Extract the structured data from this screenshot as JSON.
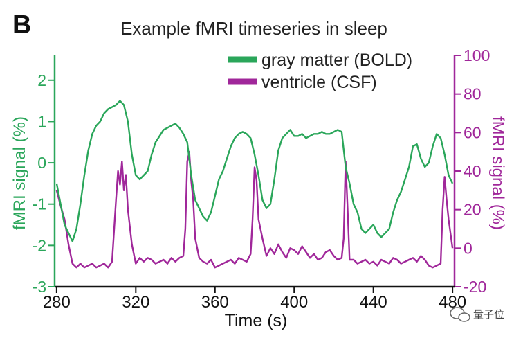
{
  "panel_letter": "B",
  "watermark": "量子位",
  "chart_data": {
    "type": "line",
    "title": "Example fMRI timeseries in sleep",
    "xlabel": "Time (s)",
    "ylabel_left": "fMRI signal (%)",
    "ylabel_right": "fMRI signal (%)",
    "xlim": [
      279,
      481
    ],
    "ylim_left": [
      -3,
      2.6
    ],
    "ylim_right": [
      -20,
      100
    ],
    "x_ticks": [
      280,
      320,
      360,
      400,
      440,
      480
    ],
    "y_ticks_left": [
      -3,
      -2,
      -1,
      0,
      1,
      2
    ],
    "y_ticks_right": [
      -20,
      0,
      20,
      40,
      60,
      80,
      100
    ],
    "grid": false,
    "legend_position": "top-right",
    "colors": {
      "bold": "#2aa65a",
      "csf": "#a0279a"
    },
    "series": [
      {
        "name": "gray matter (BOLD)",
        "axis": "left",
        "color": "#2aa65a",
        "x": [
          280,
          282,
          284,
          286,
          288,
          290,
          292,
          294,
          296,
          298,
          300,
          302,
          304,
          306,
          308,
          310,
          312,
          313,
          314,
          316,
          318,
          320,
          322,
          324,
          326,
          328,
          330,
          332,
          334,
          336,
          338,
          340,
          342,
          344,
          346,
          348,
          350,
          352,
          354,
          356,
          358,
          360,
          362,
          364,
          366,
          368,
          370,
          372,
          374,
          376,
          378,
          380,
          382,
          384,
          386,
          388,
          390,
          392,
          394,
          396,
          398,
          400,
          402,
          404,
          406,
          408,
          410,
          412,
          414,
          416,
          418,
          420,
          422,
          424,
          426,
          428,
          430,
          432,
          434,
          436,
          438,
          440,
          442,
          444,
          446,
          448,
          450,
          452,
          454,
          456,
          458,
          460,
          462,
          464,
          466,
          468,
          470,
          472,
          474,
          476,
          478,
          480
        ],
        "y": [
          -0.5,
          -1.0,
          -1.5,
          -1.7,
          -1.9,
          -1.6,
          -1.0,
          -0.3,
          0.3,
          0.7,
          0.9,
          1.0,
          1.2,
          1.3,
          1.35,
          1.4,
          1.5,
          1.45,
          1.4,
          1.0,
          0.2,
          -0.3,
          -0.4,
          -0.3,
          -0.2,
          0.2,
          0.5,
          0.65,
          0.8,
          0.85,
          0.9,
          0.95,
          0.85,
          0.7,
          0.5,
          -0.3,
          -0.9,
          -1.1,
          -1.3,
          -1.4,
          -1.2,
          -0.8,
          -0.4,
          -0.2,
          0.1,
          0.4,
          0.6,
          0.7,
          0.75,
          0.7,
          0.6,
          0.2,
          -0.3,
          -0.9,
          -1.1,
          -1.0,
          -0.4,
          0.3,
          0.6,
          0.7,
          0.8,
          0.65,
          0.65,
          0.7,
          0.6,
          0.65,
          0.7,
          0.7,
          0.75,
          0.7,
          0.7,
          0.75,
          0.8,
          0.75,
          -0.1,
          -0.5,
          -1.0,
          -1.2,
          -1.6,
          -1.7,
          -1.6,
          -1.5,
          -1.7,
          -1.8,
          -1.7,
          -1.6,
          -1.2,
          -0.9,
          -0.7,
          -0.4,
          -0.1,
          0.4,
          0.45,
          0.1,
          -0.1,
          0.0,
          0.4,
          0.7,
          0.6,
          0.2,
          -0.3,
          -0.5
        ]
      },
      {
        "name": "ventricle (CSF)",
        "axis": "right",
        "color": "#a0279a",
        "x": [
          280,
          282,
          284,
          286,
          288,
          290,
          292,
          294,
          296,
          298,
          300,
          302,
          304,
          306,
          308,
          310,
          311,
          312,
          313,
          314,
          315,
          316,
          318,
          320,
          322,
          324,
          326,
          328,
          330,
          332,
          334,
          336,
          338,
          340,
          342,
          344,
          345,
          346,
          347,
          348,
          349,
          350,
          352,
          354,
          356,
          358,
          360,
          362,
          364,
          366,
          368,
          370,
          372,
          374,
          376,
          378,
          379,
          380,
          381,
          382,
          384,
          386,
          388,
          390,
          392,
          394,
          396,
          398,
          400,
          402,
          404,
          406,
          408,
          410,
          412,
          414,
          416,
          418,
          420,
          422,
          424,
          425,
          426,
          427,
          428,
          430,
          432,
          434,
          436,
          438,
          440,
          442,
          444,
          446,
          448,
          450,
          452,
          454,
          456,
          458,
          460,
          462,
          464,
          466,
          468,
          470,
          472,
          474,
          475,
          476,
          477,
          478,
          480
        ],
        "y": [
          30,
          22,
          15,
          2,
          -8,
          -10,
          -8,
          -10,
          -9,
          -8,
          -10,
          -9,
          -8,
          -10,
          -7,
          25,
          40,
          33,
          45,
          30,
          38,
          20,
          2,
          -8,
          -5,
          -7,
          -5,
          -6,
          -8,
          -7,
          -6,
          -8,
          -5,
          -7,
          -5,
          -4,
          10,
          45,
          50,
          35,
          25,
          5,
          -5,
          -7,
          -8,
          -6,
          -10,
          -9,
          -8,
          -7,
          -6,
          -8,
          -5,
          -6,
          -7,
          -3,
          15,
          42,
          35,
          15,
          5,
          -4,
          0,
          -3,
          2,
          -2,
          -5,
          0,
          -1,
          -3,
          1,
          -2,
          -5,
          -3,
          -6,
          -5,
          -2,
          -1,
          -4,
          -6,
          -5,
          5,
          45,
          20,
          -6,
          -6,
          -8,
          -7,
          -6,
          -8,
          -7,
          -9,
          -6,
          -7,
          -8,
          -5,
          -6,
          -8,
          -7,
          -6,
          -5,
          -7,
          -4,
          -6,
          -9,
          -10,
          -9,
          -8,
          20,
          37,
          25,
          15,
          0
        ]
      }
    ]
  }
}
